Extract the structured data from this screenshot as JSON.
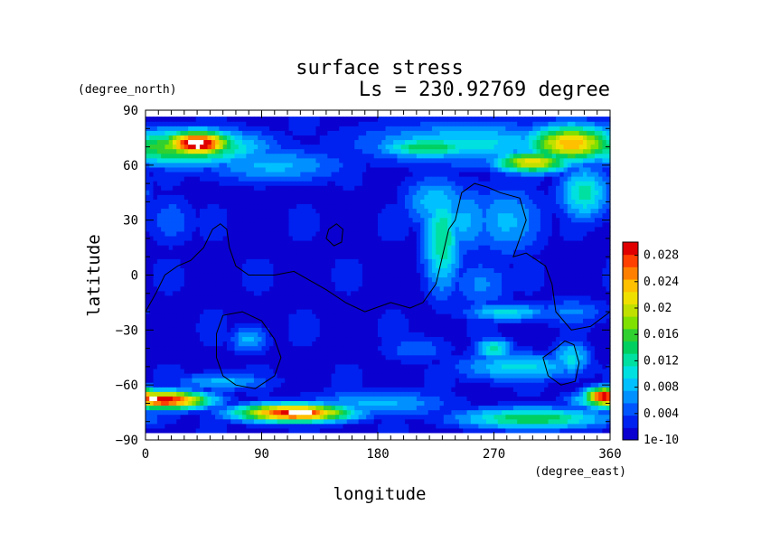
{
  "chart_data": {
    "type": "heatmap",
    "title": "surface stress",
    "subtitle": "Ls = 230.92769 degree",
    "xlabel": "longitude",
    "ylabel": "latitude",
    "xunit": "(degree_east)",
    "yunit": "(degree_north)",
    "xlim": [
      0,
      360
    ],
    "ylim": [
      -90,
      90
    ],
    "x_ticks": [
      "0",
      "90",
      "180",
      "270",
      "360"
    ],
    "y_ticks": [
      "90",
      "60",
      "30",
      "0",
      "−30",
      "−60",
      "−90"
    ],
    "x_tick_values": [
      0,
      90,
      180,
      270,
      360
    ],
    "y_tick_values": [
      90,
      60,
      30,
      0,
      -30,
      -60,
      -90
    ],
    "colorbar": {
      "min": 0,
      "max": 0.03,
      "tick_labels": [
        "0.028",
        "0.024",
        "0.02",
        "0.016",
        "0.012",
        "0.008",
        "0.004",
        "1e-10"
      ],
      "tick_values": [
        0.028,
        0.024,
        0.02,
        0.016,
        0.012,
        0.008,
        0.004,
        0
      ],
      "colors": [
        "#0a00d0",
        "#0022f0",
        "#0055ff",
        "#0090ff",
        "#00c0ff",
        "#00e0e0",
        "#00e0a0",
        "#00d060",
        "#30d030",
        "#80e000",
        "#c0e000",
        "#f0e000",
        "#ffc000",
        "#ff8000",
        "#ff4000",
        "#e00000"
      ],
      "saturated_color": "#ffffff"
    },
    "features": [
      {
        "lon": 40,
        "lat": 72,
        "slon": 28,
        "slat": 7,
        "value": 0.032
      },
      {
        "lon": 30,
        "lat": 70,
        "slon": 60,
        "slat": 10,
        "value": 0.018
      },
      {
        "lon": 100,
        "lat": 60,
        "slon": 60,
        "slat": 10,
        "value": 0.008
      },
      {
        "lon": 220,
        "lat": 70,
        "slon": 40,
        "slat": 6,
        "value": 0.015
      },
      {
        "lon": 300,
        "lat": 62,
        "slon": 30,
        "slat": 6,
        "value": 0.022
      },
      {
        "lon": 330,
        "lat": 72,
        "slon": 35,
        "slat": 10,
        "value": 0.024
      },
      {
        "lon": 250,
        "lat": 72,
        "slon": 90,
        "slat": 12,
        "value": 0.01
      },
      {
        "lon": 340,
        "lat": 45,
        "slon": 20,
        "slat": 15,
        "value": 0.012
      },
      {
        "lon": 230,
        "lat": 20,
        "slon": 15,
        "slat": 30,
        "value": 0.013
      },
      {
        "lon": 245,
        "lat": 30,
        "slon": 30,
        "slat": 20,
        "value": 0.008
      },
      {
        "lon": 225,
        "lat": 40,
        "slon": 25,
        "slat": 15,
        "value": 0.009
      },
      {
        "lon": 280,
        "lat": 30,
        "slon": 30,
        "slat": 20,
        "value": 0.008
      },
      {
        "lon": 260,
        "lat": -5,
        "slon": 25,
        "slat": 15,
        "value": 0.006
      },
      {
        "lon": 280,
        "lat": -20,
        "slon": 35,
        "slat": 5,
        "value": 0.01
      },
      {
        "lon": 330,
        "lat": -20,
        "slon": 30,
        "slat": 8,
        "value": 0.006
      },
      {
        "lon": 20,
        "lat": 30,
        "slon": 20,
        "slat": 15,
        "value": 0.005
      },
      {
        "lon": 80,
        "lat": -35,
        "slon": 15,
        "slat": 8,
        "value": 0.008
      },
      {
        "lon": 270,
        "lat": -40,
        "slon": 15,
        "slat": 6,
        "value": 0.012
      },
      {
        "lon": 290,
        "lat": -50,
        "slon": 50,
        "slat": 8,
        "value": 0.01
      },
      {
        "lon": 330,
        "lat": -45,
        "slon": 15,
        "slat": 10,
        "value": 0.01
      },
      {
        "lon": 210,
        "lat": -40,
        "slon": 30,
        "slat": 8,
        "value": 0.005
      },
      {
        "lon": 15,
        "lat": -68,
        "slon": 35,
        "slat": 5,
        "value": 0.03
      },
      {
        "lon": 5,
        "lat": -67,
        "slon": 8,
        "slat": 3,
        "value": 0.034
      },
      {
        "lon": 355,
        "lat": -66,
        "slon": 15,
        "slat": 5,
        "value": 0.03
      },
      {
        "lon": 115,
        "lat": -75,
        "slon": 45,
        "slat": 5,
        "value": 0.03
      },
      {
        "lon": 120,
        "lat": -75,
        "slon": 22,
        "slat": 2.5,
        "value": 0.035
      },
      {
        "lon": 300,
        "lat": -78,
        "slon": 60,
        "slat": 6,
        "value": 0.015
      },
      {
        "lon": 180,
        "lat": -70,
        "slon": 60,
        "slat": 8,
        "value": 0.008
      },
      {
        "lon": 60,
        "lat": -58,
        "slon": 40,
        "slat": 5,
        "value": 0.008
      }
    ],
    "contours": [
      {
        "name": "",
        "points": [
          [
            0,
            -20
          ],
          [
            8,
            -10
          ],
          [
            15,
            0
          ],
          [
            25,
            5
          ],
          [
            35,
            8
          ],
          [
            45,
            15
          ],
          [
            52,
            25
          ],
          [
            58,
            28
          ],
          [
            63,
            25
          ],
          [
            65,
            15
          ],
          [
            70,
            5
          ],
          [
            80,
            0
          ],
          [
            100,
            0
          ],
          [
            115,
            2
          ],
          [
            125,
            -2
          ],
          [
            140,
            -8
          ],
          [
            155,
            -15
          ],
          [
            170,
            -20
          ],
          [
            190,
            -15
          ],
          [
            205,
            -18
          ],
          [
            215,
            -15
          ],
          [
            225,
            -5
          ],
          [
            230,
            10
          ],
          [
            235,
            25
          ],
          [
            240,
            30
          ],
          [
            245,
            45
          ],
          [
            255,
            50
          ],
          [
            265,
            48
          ],
          [
            275,
            45
          ],
          [
            290,
            42
          ],
          [
            295,
            30
          ],
          [
            290,
            20
          ],
          [
            285,
            10
          ],
          [
            295,
            12
          ],
          [
            310,
            5
          ],
          [
            315,
            -5
          ],
          [
            318,
            -20
          ],
          [
            330,
            -30
          ],
          [
            345,
            -28
          ],
          [
            360,
            -20
          ]
        ]
      },
      {
        "name": "",
        "points": [
          [
            140,
            20
          ],
          [
            142,
            25
          ],
          [
            148,
            28
          ],
          [
            153,
            25
          ],
          [
            152,
            18
          ],
          [
            146,
            16
          ],
          [
            140,
            20
          ]
        ]
      },
      {
        "name": "",
        "points": [
          [
            60,
            -22
          ],
          [
            75,
            -20
          ],
          [
            90,
            -25
          ],
          [
            100,
            -35
          ],
          [
            105,
            -45
          ],
          [
            100,
            -55
          ],
          [
            85,
            -62
          ],
          [
            70,
            -60
          ],
          [
            60,
            -55
          ],
          [
            55,
            -45
          ],
          [
            55,
            -32
          ],
          [
            60,
            -22
          ]
        ]
      },
      {
        "name": "",
        "points": [
          [
            318,
            -40
          ],
          [
            325,
            -36
          ],
          [
            332,
            -38
          ],
          [
            336,
            -48
          ],
          [
            333,
            -58
          ],
          [
            322,
            -60
          ],
          [
            312,
            -55
          ],
          [
            308,
            -45
          ],
          [
            318,
            -40
          ]
        ]
      }
    ]
  }
}
